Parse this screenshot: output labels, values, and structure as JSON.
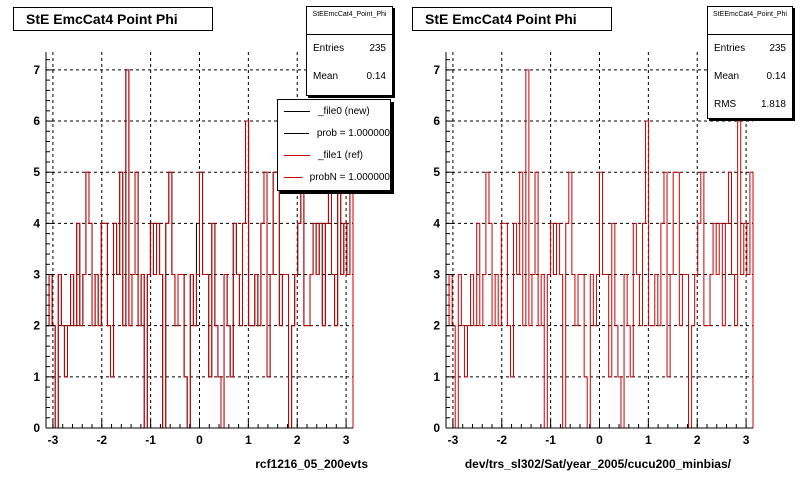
{
  "colors": {
    "new": "#000000",
    "ref": "#cc0000",
    "grid": "#000000"
  },
  "footnote": "",
  "panels": [
    {
      "title": "StE EmcCat4 Point Phi",
      "stats": {
        "name": "StEEmcCat4_Point_Phi",
        "entries_label": "Entries",
        "entries": "235",
        "mean_label": "Mean",
        "mean": "0.14"
      },
      "legend": [
        "_file0 (new)",
        "prob = 1.000000",
        "_file1 (ref)",
        "probN = 1.000000"
      ],
      "xtitle": "rcf1216_05_200evts"
    },
    {
      "title": "StE EmcCat4 Point Phi",
      "stats": {
        "name": "StEEmcCat4_Point_Phi",
        "entries_label": "Entries",
        "entries": "235",
        "mean_label": "Mean",
        "mean": "0.14",
        "rms_label": "RMS",
        "rms": "1.818"
      },
      "xtitle": "dev/trs_sl302/Sat/year_2005/cucu200_minbias/"
    }
  ],
  "chart_data": [
    {
      "type": "histogram",
      "title": "StE EmcCat4 Point Phi",
      "xlabel": "rcf1216_05_200evts",
      "ylabel": "",
      "xlim": [
        -3.1416,
        3.1416
      ],
      "ylim": [
        0,
        7.35
      ],
      "xticks": [
        -3,
        -2,
        -1,
        0,
        1,
        2,
        3
      ],
      "yticks": [
        0,
        1,
        2,
        3,
        4,
        5,
        6,
        7
      ],
      "grid": true,
      "legend_position": "top-right",
      "bins": 100,
      "series": [
        {
          "name": "_file0 (new)",
          "values": [
            2,
            3,
            2,
            0,
            3,
            2,
            1,
            2,
            3,
            2,
            4,
            2,
            3,
            5,
            4,
            2,
            3,
            2,
            4,
            4,
            2,
            1,
            4,
            3,
            5,
            2,
            7,
            2,
            3,
            5,
            2,
            3,
            0,
            3,
            4,
            3,
            4,
            3,
            0,
            4,
            5,
            3,
            2,
            3,
            3,
            1,
            0,
            3,
            2,
            4,
            5,
            3,
            3,
            1,
            4,
            2,
            1,
            0,
            3,
            2,
            1,
            4,
            3,
            2,
            4,
            6,
            2,
            2,
            3,
            2,
            4,
            5,
            1,
            3,
            5,
            5,
            2,
            3,
            3,
            0,
            2,
            3,
            4,
            5,
            2,
            2,
            3,
            4,
            3,
            4,
            2,
            4,
            5,
            3,
            2,
            6,
            3,
            4,
            3,
            5
          ]
        },
        {
          "name": "_file1 (ref)",
          "values": [
            2,
            3,
            2,
            0,
            3,
            2,
            1,
            2,
            3,
            2,
            4,
            2,
            3,
            5,
            4,
            2,
            3,
            2,
            4,
            4,
            2,
            1,
            4,
            3,
            5,
            2,
            7,
            2,
            3,
            5,
            2,
            3,
            0,
            3,
            4,
            3,
            4,
            3,
            0,
            4,
            5,
            3,
            2,
            3,
            3,
            1,
            0,
            3,
            2,
            3,
            5,
            3,
            3,
            1,
            4,
            2,
            1,
            0,
            3,
            2,
            1,
            4,
            3,
            2,
            4,
            6,
            2,
            2,
            3,
            2,
            4,
            5,
            1,
            3,
            5,
            5,
            2,
            3,
            3,
            0,
            2,
            3,
            4,
            5,
            2,
            2,
            3,
            4,
            3,
            4,
            2,
            4,
            5,
            3,
            2,
            6,
            3,
            4,
            3,
            5
          ]
        }
      ]
    },
    {
      "type": "histogram",
      "title": "StE EmcCat4 Point Phi",
      "xlabel": "dev/trs_sl302/Sat/year_2005/cucu200_minbias/",
      "ylabel": "",
      "xlim": [
        -3.1416,
        3.1416
      ],
      "ylim": [
        0,
        7.35
      ],
      "xticks": [
        -3,
        -2,
        -1,
        0,
        1,
        2,
        3
      ],
      "yticks": [
        0,
        1,
        2,
        3,
        4,
        5,
        6,
        7
      ],
      "grid": true,
      "series": [
        {
          "name": "",
          "values": [
            2,
            3,
            2,
            0,
            3,
            2,
            1,
            2,
            3,
            2,
            4,
            2,
            3,
            5,
            4,
            2,
            3,
            2,
            4,
            4,
            2,
            1,
            4,
            3,
            5,
            2,
            7,
            2,
            3,
            5,
            2,
            3,
            0,
            3,
            4,
            3,
            4,
            3,
            0,
            4,
            5,
            3,
            2,
            3,
            3,
            1,
            0,
            3,
            2,
            3,
            5,
            3,
            3,
            1,
            4,
            2,
            1,
            0,
            3,
            2,
            1,
            4,
            3,
            2,
            4,
            6,
            2,
            2,
            3,
            2,
            4,
            5,
            1,
            3,
            5,
            5,
            2,
            3,
            3,
            0,
            2,
            3,
            4,
            5,
            2,
            2,
            3,
            4,
            3,
            4,
            2,
            4,
            5,
            3,
            2,
            6,
            3,
            4,
            3,
            5
          ]
        }
      ]
    }
  ]
}
